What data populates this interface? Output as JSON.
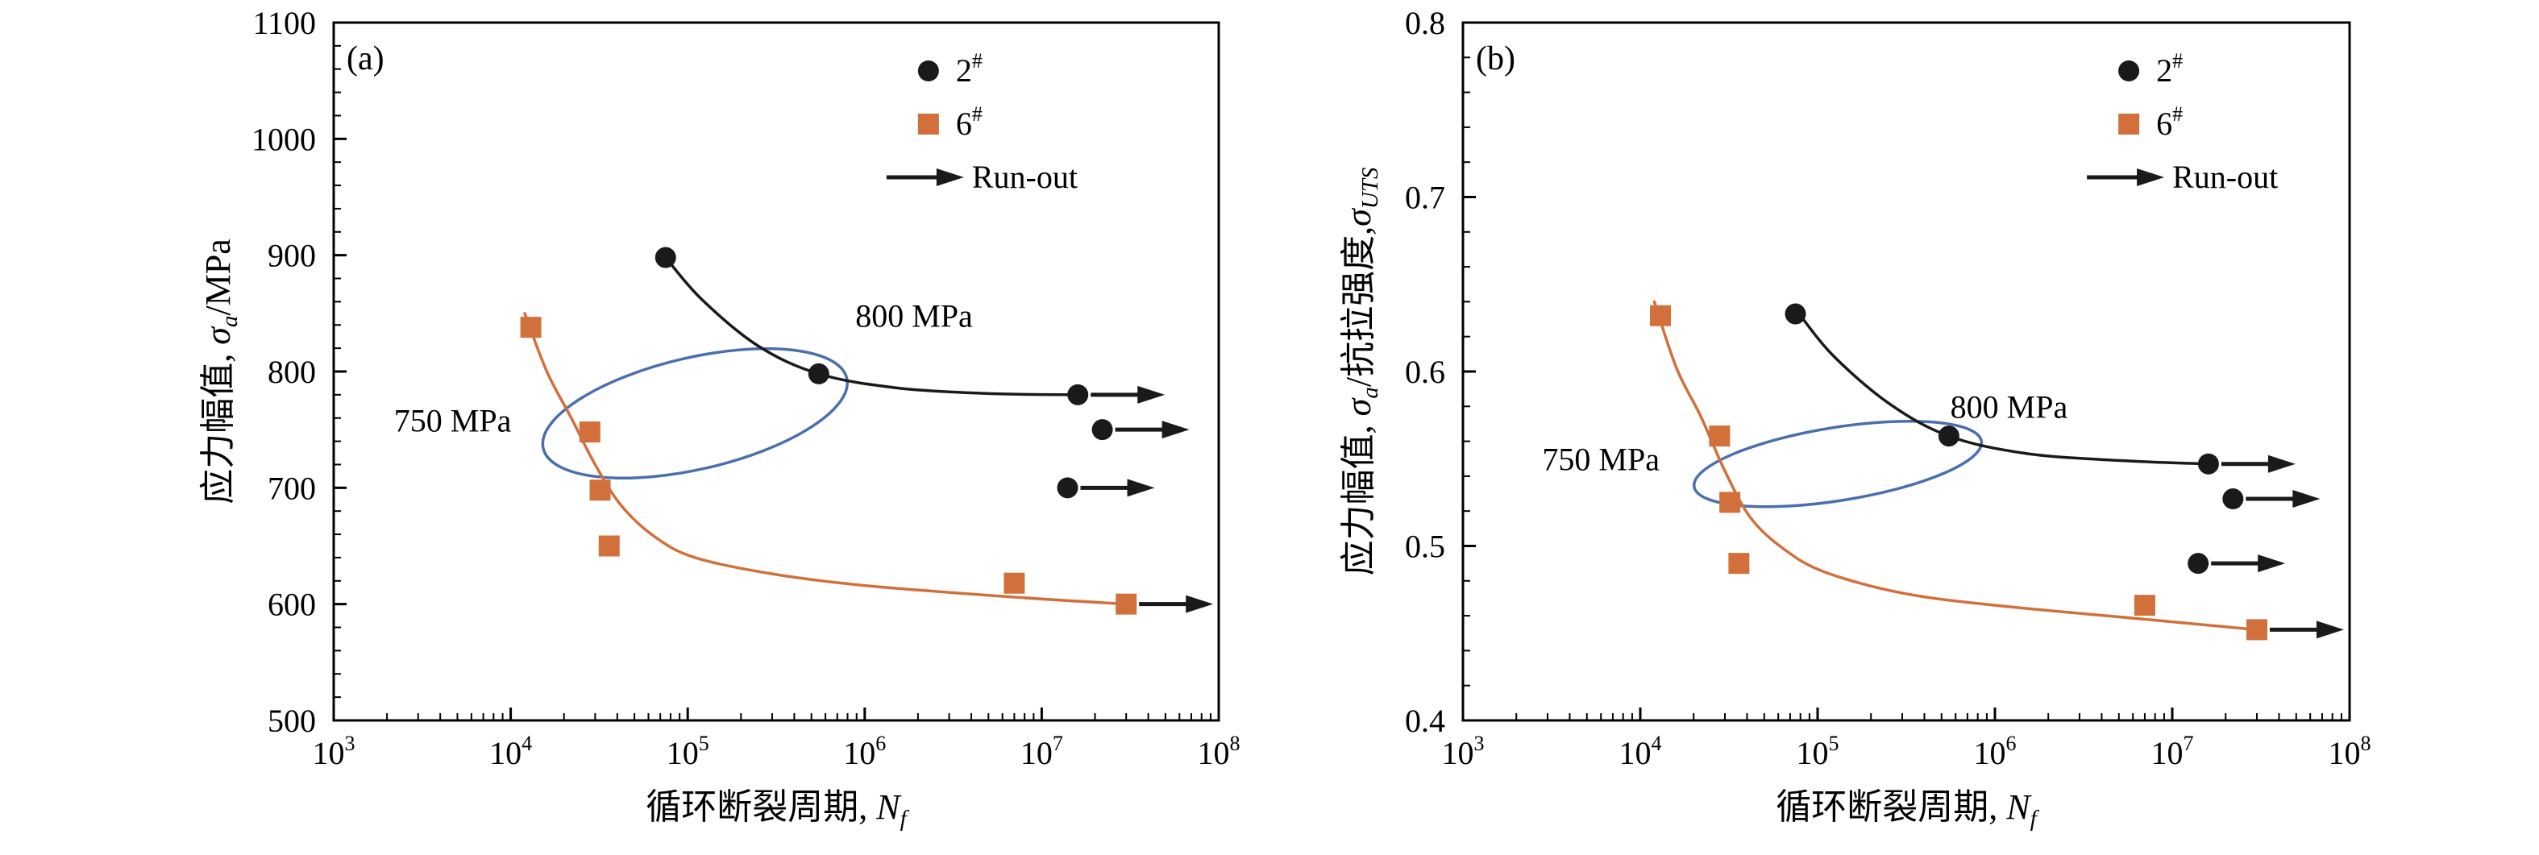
{
  "figure": {
    "background": "#ffffff",
    "colors": {
      "series2": "#1a1a1a",
      "series6": "#d2703b",
      "ellipse": "#4a6fae",
      "arrow": "#1a1a1a"
    }
  },
  "chart_data": [
    {
      "type": "scatter",
      "panel_label": "(a)",
      "xscale": "log",
      "xlim_exp": [
        3,
        8
      ],
      "ylim": [
        500,
        1100
      ],
      "ytick_step": 100,
      "ytick_minor_step": 20,
      "ytick_labels": [
        "500",
        "600",
        "700",
        "800",
        "900",
        "1000",
        "1100"
      ],
      "xlabel_parts": [
        {
          "t": "循环断裂周期, "
        },
        {
          "t": "N",
          "i": true
        },
        {
          "t": "f",
          "sub": true,
          "i": true
        }
      ],
      "ylabel_parts": [
        {
          "t": "应力幅值, "
        },
        {
          "t": "σ",
          "i": true
        },
        {
          "t": "a",
          "sub": true,
          "i": true
        },
        {
          "t": "/MPa"
        }
      ],
      "legend_fx": 0.672,
      "legend": [
        {
          "type": "circle",
          "color": "#1a1a1a",
          "label_parts": [
            {
              "t": "2"
            },
            {
              "t": "#",
              "sup": true
            }
          ]
        },
        {
          "type": "square",
          "color": "#d2703b",
          "label_parts": [
            {
              "t": "6"
            },
            {
              "t": "#",
              "sup": true
            }
          ]
        },
        {
          "type": "arrow",
          "color": "#1a1a1a",
          "label_parts": [
            {
              "t": "Run-out"
            }
          ]
        }
      ],
      "series": [
        {
          "key": "2hash",
          "name": "2#",
          "marker": "circle",
          "color": "#1a1a1a",
          "points": [
            {
              "x": 75000,
              "y": 898
            },
            {
              "x": 550000,
              "y": 798
            },
            {
              "x": 16000000,
              "y": 780,
              "runout": true
            },
            {
              "x": 22000000,
              "y": 750,
              "runout": true
            },
            {
              "x": 14000000,
              "y": 700,
              "runout": true
            }
          ],
          "curve": [
            [
              75000,
              898
            ],
            [
              120000,
              862
            ],
            [
              250000,
              822
            ],
            [
              550000,
              798
            ],
            [
              1500000,
              786
            ],
            [
              5000000,
              781
            ],
            [
              16000000,
              780
            ]
          ]
        },
        {
          "key": "6hash",
          "name": "6#",
          "marker": "square",
          "color": "#d2703b",
          "points": [
            {
              "x": 13000,
              "y": 838
            },
            {
              "x": 28000,
              "y": 748
            },
            {
              "x": 32000,
              "y": 698
            },
            {
              "x": 36000,
              "y": 650
            },
            {
              "x": 7000000,
              "y": 618
            },
            {
              "x": 30000000,
              "y": 600,
              "runout": true
            }
          ],
          "curve": [
            [
              12000,
              850
            ],
            [
              16000,
              800
            ],
            [
              22000,
              760
            ],
            [
              30000,
              720
            ],
            [
              42000,
              685
            ],
            [
              65000,
              658
            ],
            [
              110000,
              640
            ],
            [
              300000,
              626
            ],
            [
              1000000,
              616
            ],
            [
              7000000,
              606
            ],
            [
              30000000,
              600
            ]
          ]
        }
      ],
      "annotations": [
        {
          "text": "800 MPa",
          "x": 1900000,
          "y": 848,
          "color": "#000000"
        },
        {
          "text": "750 MPa",
          "x": 4700,
          "y": 758,
          "color": "#d2703b"
        }
      ],
      "ellipse": {
        "cx": 110000,
        "cy": 764,
        "rx_decades": 0.88,
        "ry": 48,
        "rotation": -13
      }
    },
    {
      "type": "scatter",
      "panel_label": "(b)",
      "xscale": "log",
      "xlim_exp": [
        3,
        8
      ],
      "ylim": [
        0.4,
        0.8
      ],
      "ytick_step": 0.1,
      "ytick_minor_step": 0.02,
      "ytick_labels": [
        "0.4",
        "0.5",
        "0.6",
        "0.7",
        "0.8"
      ],
      "xlabel_parts": [
        {
          "t": "循环断裂周期, "
        },
        {
          "t": "N",
          "i": true
        },
        {
          "t": "f",
          "sub": true,
          "i": true
        }
      ],
      "ylabel_parts": [
        {
          "t": "应力幅值, "
        },
        {
          "t": "σ",
          "i": true
        },
        {
          "t": "a",
          "sub": true,
          "i": true
        },
        {
          "t": "/抗拉强度,"
        },
        {
          "t": "σ",
          "i": true
        },
        {
          "t": "UTS",
          "sub": true,
          "i": true
        }
      ],
      "legend_fx": 0.751,
      "legend": [
        {
          "type": "circle",
          "color": "#1a1a1a",
          "label_parts": [
            {
              "t": "2"
            },
            {
              "t": "#",
              "sup": true
            }
          ]
        },
        {
          "type": "square",
          "color": "#d2703b",
          "label_parts": [
            {
              "t": "6"
            },
            {
              "t": "#",
              "sup": true
            }
          ]
        },
        {
          "type": "arrow",
          "color": "#1a1a1a",
          "label_parts": [
            {
              "t": "Run-out"
            }
          ]
        }
      ],
      "series": [
        {
          "key": "2hash",
          "name": "2#",
          "marker": "circle",
          "color": "#1a1a1a",
          "points": [
            {
              "x": 75000,
              "y": 0.633
            },
            {
              "x": 550000,
              "y": 0.563
            },
            {
              "x": 16000000,
              "y": 0.547,
              "runout": true
            },
            {
              "x": 22000000,
              "y": 0.527,
              "runout": true
            },
            {
              "x": 14000000,
              "y": 0.49,
              "runout": true
            }
          ],
          "curve": [
            [
              75000,
              0.636
            ],
            [
              120000,
              0.61
            ],
            [
              250000,
              0.582
            ],
            [
              550000,
              0.563
            ],
            [
              1500000,
              0.553
            ],
            [
              5000000,
              0.549
            ],
            [
              16000000,
              0.547
            ]
          ]
        },
        {
          "key": "6hash",
          "name": "6#",
          "marker": "square",
          "color": "#d2703b",
          "points": [
            {
              "x": 13000,
              "y": 0.632
            },
            {
              "x": 28000,
              "y": 0.563
            },
            {
              "x": 32000,
              "y": 0.525
            },
            {
              "x": 36000,
              "y": 0.49
            },
            {
              "x": 7000000,
              "y": 0.466
            },
            {
              "x": 30000000,
              "y": 0.452,
              "runout": true
            }
          ],
          "curve": [
            [
              12000,
              0.64
            ],
            [
              16000,
              0.602
            ],
            [
              22000,
              0.574
            ],
            [
              30000,
              0.543
            ],
            [
              42000,
              0.516
            ],
            [
              65000,
              0.498
            ],
            [
              110000,
              0.485
            ],
            [
              300000,
              0.473
            ],
            [
              1000000,
              0.466
            ],
            [
              7000000,
              0.458
            ],
            [
              30000000,
              0.452
            ]
          ]
        }
      ],
      "annotations": [
        {
          "text": "800 MPa",
          "x": 1200000,
          "y": 0.58,
          "color": "#000000"
        },
        {
          "text": "750 MPa",
          "x": 6000,
          "y": 0.55,
          "color": "#d2703b"
        }
      ],
      "ellipse": {
        "cx": 130000,
        "cy": 0.547,
        "rx_decades": 0.82,
        "ry": 0.021,
        "rotation": -9
      }
    }
  ]
}
